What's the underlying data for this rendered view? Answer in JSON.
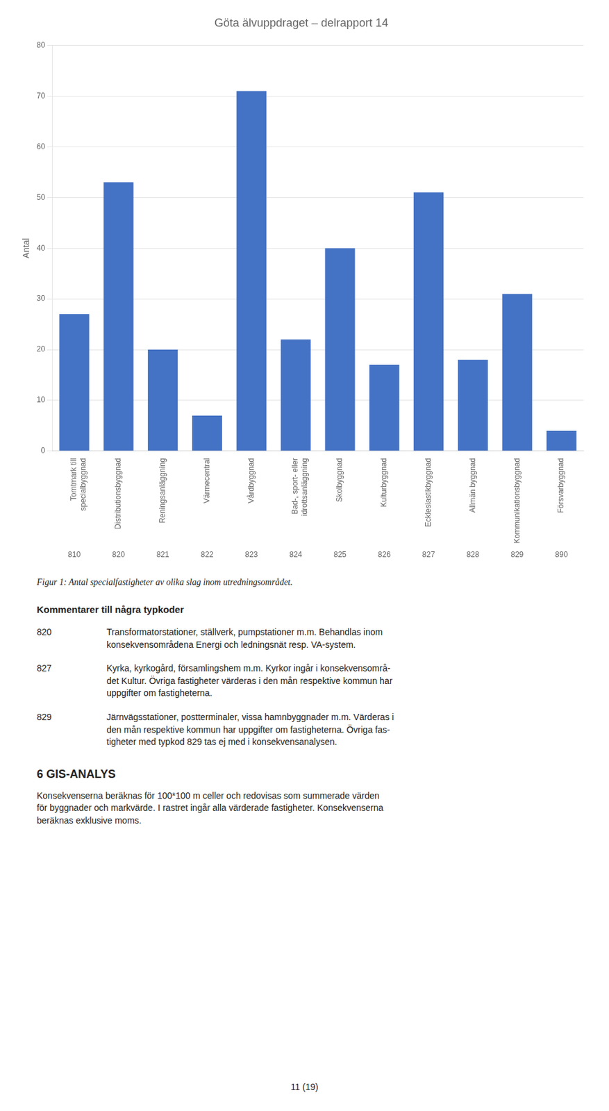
{
  "chart_data": {
    "type": "bar",
    "title": "Göta älvuppdraget – delrapport 14",
    "ylabel": "Antal",
    "categories": [
      "Tomtmark till\nspecialbyggnad",
      "Distributionsbyggnad",
      "Reningsanläggning",
      "Värmecentral",
      "Vårdbyggnad",
      "Bad-, sport- eller\nidrottsanläggning",
      "Skolbyggnad",
      "Kulturbyggnad",
      "Ecklesiastikbyggnad",
      "Allmän byggnad",
      "Kommunikationsbyggnad",
      "Försvarbyggnad"
    ],
    "category_codes": [
      "810",
      "820",
      "821",
      "822",
      "823",
      "824",
      "825",
      "826",
      "827",
      "828",
      "829",
      "890"
    ],
    "values": [
      27,
      53,
      20,
      7,
      71,
      22,
      40,
      17,
      51,
      18,
      31,
      4
    ],
    "color": "#4472C4",
    "ylim": [
      0,
      80
    ],
    "yticks": [
      0,
      10,
      20,
      30,
      40,
      50,
      60,
      70,
      80
    ],
    "grid": true,
    "annotations": [
      "Figur 1: Antal specialfastigheter av olika slag inom utredningsområdet.",
      "Kommentarer till några typkoder",
      "820",
      "Transformatorstationer, ställverk, pumpstationer m.m. Behandlas inom\nkonsekvensområdena Energi och ledningsnät resp. VA-system.",
      "827",
      "Kyrka, kyrkogård, församlingshem m.m. Kyrkor ingår i konsekvensområ-\ndet Kultur. Övriga fastigheter värderas i den mån respektive kommun har\nuppgifter om fastigheterna.",
      "829",
      "Järnvägsstationer, postterminaler, vissa hamnbyggnader m.m. Värderas i\nden mån respektive kommun har uppgifter om fastigheterna. Övriga fas-\ntigheter med typkod 829 tas ej med i konsekvensanalysen.",
      "6   GIS-ANALYS",
      "Konsekvenserna beräknas för 100*100 m celler och redovisas som summerade värden\nför byggnader och markvärde. I rastret ingår alla värderade fastigheter. Konsekvenserna\nberäknas exklusive moms.",
      "11 (19)"
    ]
  }
}
